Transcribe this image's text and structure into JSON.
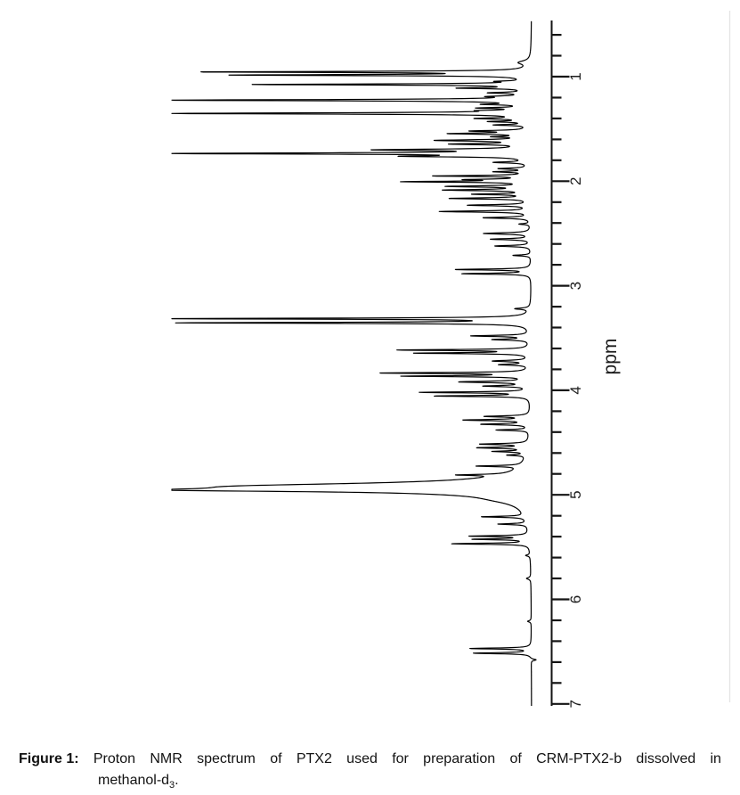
{
  "figure": {
    "caption_prefix": "Figure 1:",
    "caption_line1": "Proton NMR spectrum of PTX2 used for preparation of CRM-PTX2-b dissolved in",
    "caption_line2_pre": "methanol-d",
    "caption_line2_sub": "3",
    "caption_line2_post": "."
  },
  "chart_data": {
    "type": "line",
    "title": "Proton NMR spectrum of PTX2 used for preparation of CRM-PTX2-b dissolved in methanol-d3",
    "xlabel": "",
    "ylabel": "ppm",
    "orientation": "rotated 90 degrees: ppm axis vertical (increasing downward), peak intensity extends leftward from baseline",
    "background": "#ffffff",
    "trace_color": "#000000",
    "axis_color": "#141414",
    "label_color": "#1c1c1c",
    "axis": {
      "label": "ppm",
      "ppm_start": 0.47,
      "ppm_end": 7.02,
      "tick_first": 0.6,
      "tick_last": 7.0,
      "tick_step": 0.2,
      "major_ticks": [
        1,
        2,
        3,
        4,
        5,
        6,
        7
      ],
      "tick_labels": [
        "1",
        "2",
        "3",
        "4",
        "5",
        "6",
        "7"
      ]
    },
    "peaks_format": [
      "ppm_center",
      "relative_intensity_0to1",
      "lorentzian_half_width_ppm"
    ],
    "peaks": [
      [
        0.865,
        0.03,
        0.02
      ],
      [
        0.955,
        0.9,
        0.006
      ],
      [
        0.985,
        0.8,
        0.006
      ],
      [
        1.045,
        0.06,
        0.005
      ],
      [
        1.075,
        0.76,
        0.006
      ],
      [
        1.11,
        0.18,
        0.006
      ],
      [
        1.155,
        0.1,
        0.007
      ],
      [
        1.19,
        0.08,
        0.006
      ],
      [
        1.225,
        1.0,
        0.007
      ],
      [
        1.265,
        0.1,
        0.006
      ],
      [
        1.3,
        0.12,
        0.006
      ],
      [
        1.325,
        0.08,
        0.005
      ],
      [
        1.352,
        1.0,
        0.007
      ],
      [
        1.4,
        0.13,
        0.007
      ],
      [
        1.43,
        0.1,
        0.006
      ],
      [
        1.462,
        0.09,
        0.006
      ],
      [
        1.52,
        0.15,
        0.007
      ],
      [
        1.545,
        0.21,
        0.007
      ],
      [
        1.575,
        0.08,
        0.006
      ],
      [
        1.61,
        0.25,
        0.008
      ],
      [
        1.645,
        0.2,
        0.007
      ],
      [
        1.7,
        0.4,
        0.008
      ],
      [
        1.735,
        0.98,
        0.007
      ],
      [
        1.762,
        0.3,
        0.007
      ],
      [
        1.82,
        0.09,
        0.007
      ],
      [
        1.88,
        0.08,
        0.007
      ],
      [
        1.91,
        0.09,
        0.006
      ],
      [
        1.95,
        0.26,
        0.006
      ],
      [
        1.985,
        0.15,
        0.006
      ],
      [
        2.005,
        0.34,
        0.006
      ],
      [
        2.05,
        0.22,
        0.007
      ],
      [
        2.085,
        0.23,
        0.007
      ],
      [
        2.125,
        0.15,
        0.006
      ],
      [
        2.165,
        0.22,
        0.007
      ],
      [
        2.23,
        0.17,
        0.007
      ],
      [
        2.29,
        0.25,
        0.007
      ],
      [
        2.35,
        0.13,
        0.007
      ],
      [
        2.41,
        0.03,
        0.006
      ],
      [
        2.5,
        0.13,
        0.008
      ],
      [
        2.555,
        0.11,
        0.007
      ],
      [
        2.62,
        0.1,
        0.007
      ],
      [
        2.71,
        0.05,
        0.006
      ],
      [
        2.845,
        0.21,
        0.006
      ],
      [
        2.885,
        0.19,
        0.006
      ],
      [
        3.22,
        0.04,
        0.008
      ],
      [
        3.315,
        1.0,
        0.006
      ],
      [
        3.355,
        0.97,
        0.006
      ],
      [
        3.48,
        0.16,
        0.007
      ],
      [
        3.515,
        0.1,
        0.007
      ],
      [
        3.615,
        0.36,
        0.006
      ],
      [
        3.645,
        0.31,
        0.006
      ],
      [
        3.72,
        0.1,
        0.008
      ],
      [
        3.755,
        0.08,
        0.007
      ],
      [
        3.835,
        0.41,
        0.006
      ],
      [
        3.865,
        0.34,
        0.006
      ],
      [
        3.92,
        0.19,
        0.008
      ],
      [
        3.96,
        0.12,
        0.007
      ],
      [
        4.02,
        0.3,
        0.006
      ],
      [
        4.055,
        0.26,
        0.006
      ],
      [
        4.25,
        0.12,
        0.007
      ],
      [
        4.285,
        0.18,
        0.007
      ],
      [
        4.325,
        0.13,
        0.007
      ],
      [
        4.38,
        0.09,
        0.006
      ],
      [
        4.515,
        0.13,
        0.007
      ],
      [
        4.55,
        0.135,
        0.007
      ],
      [
        4.585,
        0.09,
        0.006
      ],
      [
        4.62,
        0.05,
        0.006
      ],
      [
        4.725,
        0.12,
        0.006
      ],
      [
        4.81,
        0.12,
        0.006
      ],
      [
        4.915,
        0.3,
        0.03
      ],
      [
        4.93,
        0.5,
        0.045
      ],
      [
        4.955,
        0.55,
        0.015
      ],
      [
        5.05,
        0.03,
        0.04
      ],
      [
        5.21,
        0.12,
        0.006
      ],
      [
        5.28,
        0.08,
        0.006
      ],
      [
        5.395,
        0.16,
        0.006
      ],
      [
        5.425,
        0.15,
        0.006
      ],
      [
        5.468,
        0.215,
        0.006
      ],
      [
        5.58,
        0.012,
        0.008
      ],
      [
        5.8,
        0.012,
        0.01
      ],
      [
        6.21,
        0.01,
        0.008
      ],
      [
        6.47,
        0.17,
        0.006
      ],
      [
        6.515,
        0.16,
        0.006
      ],
      [
        6.578,
        -0.015,
        0.008
      ]
    ]
  }
}
